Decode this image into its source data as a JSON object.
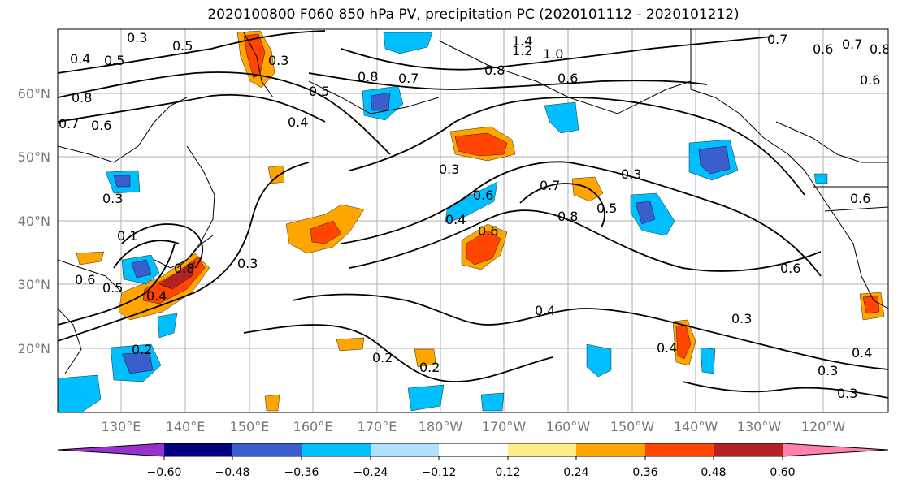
{
  "title": "2020100800 F060 850 hPa PV, precipitation PC (2020101112 - 2020101212)",
  "map": {
    "lat_labels": [
      "60°N",
      "50°N",
      "40°N",
      "30°N",
      "20°N"
    ],
    "lon_labels": [
      "130°E",
      "140°E",
      "150°E",
      "160°E",
      "170°E",
      "180°W",
      "170°W",
      "160°W",
      "150°W",
      "140°W",
      "130°W",
      "120°W"
    ],
    "contour_labels": [
      "0.3",
      "0.5",
      "0.4",
      "0.5",
      "0.8",
      "0.7",
      "0.6",
      "0.4",
      "0.3",
      "0.5",
      "0.8",
      "0.7",
      "1.4",
      "1.2",
      "1.0",
      "0.8",
      "0.6",
      "0.7",
      "0.6",
      "0.7",
      "0.8",
      "0.6",
      "0.3",
      "0.7",
      "0.8",
      "0.6",
      "0.5",
      "0.4",
      "0.6",
      "0.3",
      "0.4",
      "0.6",
      "0.3",
      "0.2",
      "0.2",
      "0.4",
      "0.3",
      "0.4",
      "0.3",
      "0.3",
      "0.4",
      "0.6",
      "0.3",
      "0.1",
      "0.6",
      "0.5",
      "0.8",
      "0.2"
    ],
    "colors": {
      "strong_neg": "#9932cc",
      "neg_navy": "#000080",
      "neg_blue": "#3a5fcd",
      "neg_sky": "#00bfff",
      "neg_light": "#b0e2ff",
      "pos_yellow": "#ffec8b",
      "pos_orange": "#ffa500",
      "pos_orange_red": "#ff4500",
      "pos_brick": "#b22222",
      "pos_pink": "#ff82ab"
    }
  },
  "colorbar": {
    "colors": [
      "#9932cc",
      "#000080",
      "#3a5fcd",
      "#00bfff",
      "#b0e2ff",
      "#ffffff",
      "#ffec8b",
      "#ffa500",
      "#ff4500",
      "#b22222",
      "#ff82ab"
    ],
    "ticks": [
      "−0.60",
      "−0.48",
      "−0.36",
      "−0.24",
      "−0.12",
      "0.12",
      "0.24",
      "0.36",
      "0.48",
      "0.60"
    ]
  }
}
